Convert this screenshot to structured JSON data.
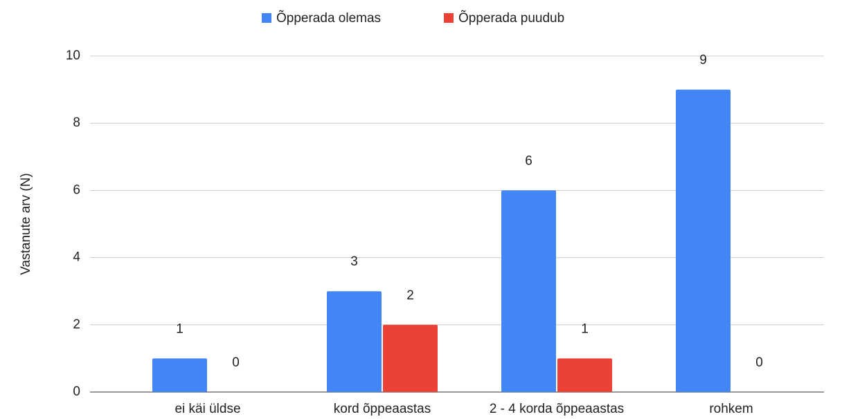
{
  "chart_data": {
    "type": "bar",
    "y_label": "Vastanute arv (N)",
    "categories": [
      "ei käi üldse",
      "kord õppeaastas",
      "2 - 4 korda õppeaastas",
      "rohkem"
    ],
    "series": [
      {
        "name": "Õpperada olemas",
        "color": "#4285f4",
        "values": [
          1,
          3,
          6,
          9
        ]
      },
      {
        "name": "Õpperada puudub",
        "color": "#ea4335",
        "values": [
          0,
          2,
          1,
          0
        ]
      }
    ],
    "ylim": [
      0,
      10
    ],
    "yticks": [
      0,
      2,
      4,
      6,
      8,
      10
    ],
    "grid": true,
    "legend": "top"
  }
}
